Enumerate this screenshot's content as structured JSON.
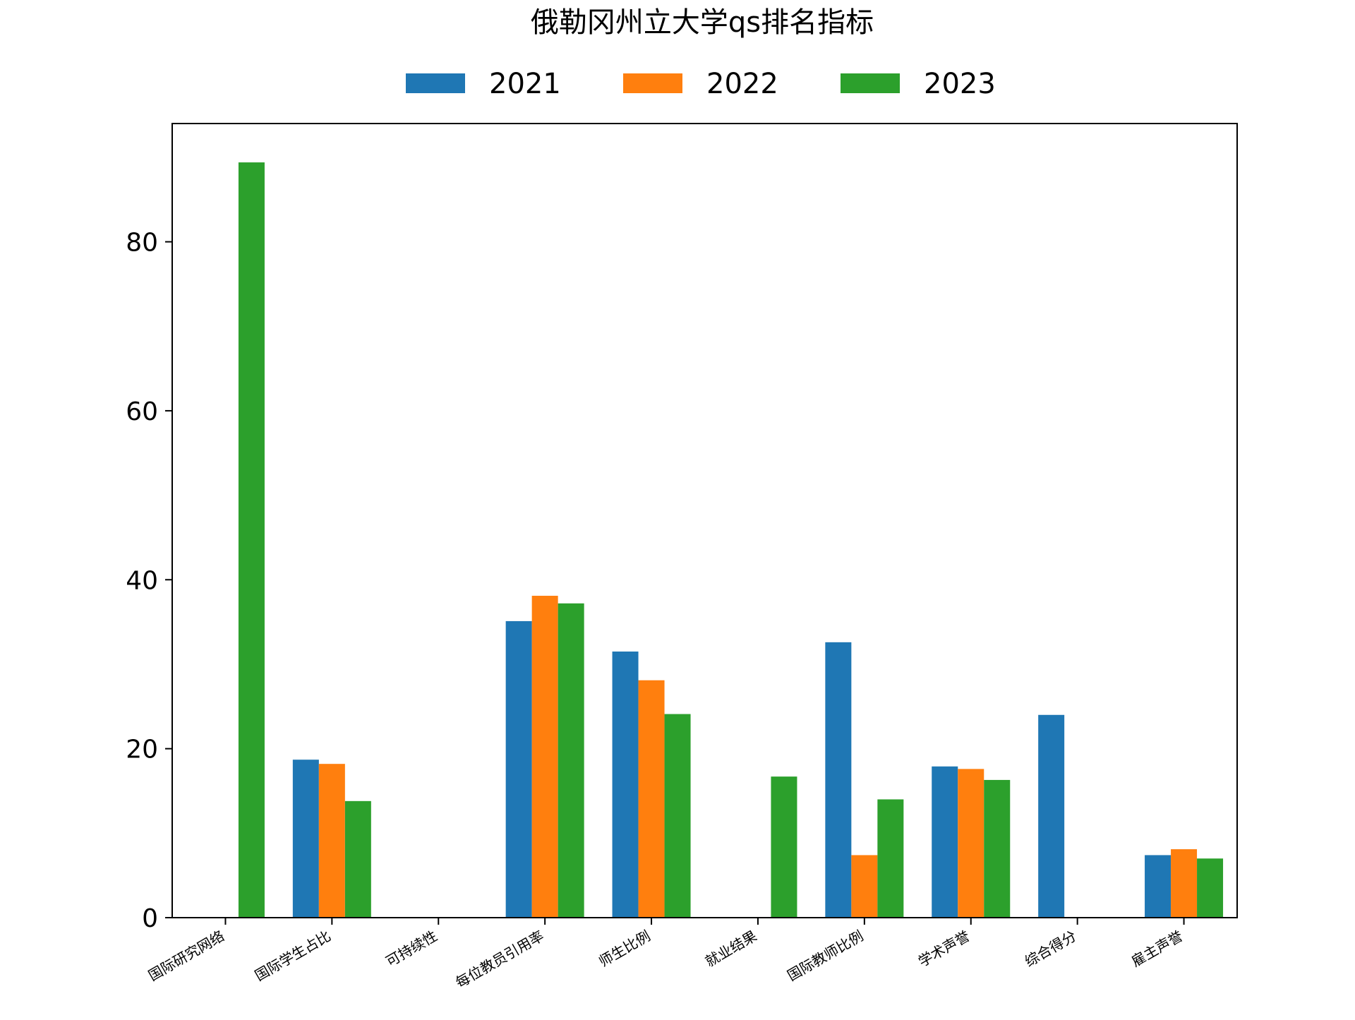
{
  "chart_data": {
    "type": "bar",
    "title": "俄勒冈州立大学qs排名指标",
    "xlabel": "",
    "ylabel": "",
    "ylim": [
      0,
      94
    ],
    "yticks": [
      0,
      20,
      40,
      60,
      80
    ],
    "legend_position": "top-center",
    "grid": false,
    "categories": [
      "国际研究网络",
      "国际学生占比",
      "可持续性",
      "每位教员引用率",
      "师生比例",
      "就业结果",
      "国际教师比例",
      "学术声誉",
      "综合得分",
      "雇主声誉"
    ],
    "series": [
      {
        "name": "2021",
        "color": "#1f77b4",
        "values": [
          null,
          18.7,
          null,
          35.1,
          31.5,
          null,
          32.6,
          17.9,
          24.0,
          7.4
        ]
      },
      {
        "name": "2022",
        "color": "#ff7f0e",
        "values": [
          null,
          18.2,
          null,
          38.1,
          28.1,
          null,
          7.4,
          17.6,
          null,
          8.1
        ]
      },
      {
        "name": "2023",
        "color": "#2ca02c",
        "values": [
          89.4,
          13.8,
          null,
          37.2,
          24.1,
          16.7,
          14.0,
          16.3,
          null,
          7.0
        ]
      }
    ]
  }
}
